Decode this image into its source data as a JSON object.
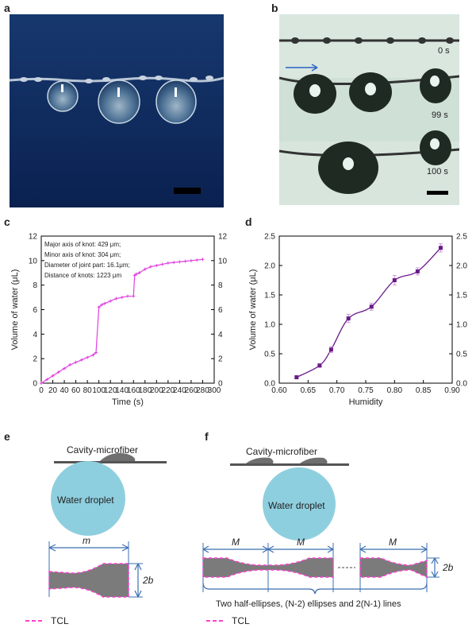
{
  "panels": {
    "a": "a",
    "b": "b",
    "c": "c",
    "d": "d",
    "e": "e",
    "f": "f"
  },
  "panel_b": {
    "times": [
      "0 s",
      "99 s",
      "100 s"
    ]
  },
  "chart_data": [
    {
      "type": "line",
      "panel": "c",
      "xlabel": "Time (s)",
      "ylabel": "Volume of water (μL)",
      "xlim": [
        0,
        300
      ],
      "ylim": [
        0,
        12
      ],
      "xticks": [
        "0",
        "20",
        "40",
        "60",
        "80",
        "100",
        "120",
        "140",
        "160",
        "180",
        "200",
        "220",
        "240",
        "260",
        "280",
        "300"
      ],
      "yticks": [
        "0",
        "2",
        "4",
        "6",
        "8",
        "10",
        "12"
      ],
      "yticks_right": [
        "0",
        "2",
        "4",
        "6",
        "8",
        "10",
        "12"
      ],
      "annotations": [
        "Major axis of knot: 429 μm;",
        "Minor axis of knot: 304 μm;",
        "Diameter of joint part: 16.1μm;",
        "Distance of knots: 1223 μm"
      ],
      "color": "#e040e0",
      "x": [
        0,
        10,
        20,
        30,
        40,
        50,
        60,
        70,
        80,
        90,
        95,
        100,
        105,
        110,
        120,
        130,
        140,
        150,
        160,
        162,
        165,
        170,
        180,
        190,
        200,
        210,
        220,
        230,
        240,
        250,
        260,
        270,
        280
      ],
      "y": [
        0,
        0.3,
        0.6,
        0.9,
        1.2,
        1.5,
        1.7,
        1.9,
        2.1,
        2.3,
        2.5,
        6.2,
        6.4,
        6.5,
        6.7,
        6.9,
        7.0,
        7.1,
        7.1,
        8.8,
        8.9,
        9.0,
        9.3,
        9.5,
        9.6,
        9.7,
        9.8,
        9.85,
        9.9,
        9.95,
        10.0,
        10.05,
        10.1
      ]
    },
    {
      "type": "scatter",
      "panel": "d",
      "xlabel": "Humidity",
      "ylabel": "Volume of water (μL)",
      "xlim": [
        0.6,
        0.9
      ],
      "ylim": [
        0,
        2.5
      ],
      "xticks": [
        "0.60",
        "0.65",
        "0.70",
        "0.75",
        "0.80",
        "0.85",
        "0.90"
      ],
      "yticks": [
        "0.0",
        "0.5",
        "1.0",
        "1.5",
        "2.0",
        "2.5"
      ],
      "yticks_right": [
        "0.0",
        "0.5",
        "1.0",
        "1.5",
        "2.0",
        "2.5"
      ],
      "color": "#6a1a8a",
      "x": [
        0.63,
        0.67,
        0.69,
        0.72,
        0.76,
        0.8,
        0.84,
        0.88
      ],
      "y": [
        0.1,
        0.3,
        0.57,
        1.1,
        1.3,
        1.75,
        1.9,
        2.3
      ],
      "err": [
        0.02,
        0.03,
        0.05,
        0.07,
        0.06,
        0.08,
        0.06,
        0.07
      ]
    }
  ],
  "panel_e": {
    "fiber_label": "Cavity-microfiber",
    "droplet_label": "Water droplet",
    "m_label": "m",
    "b_label": "2b",
    "tcl_label": "TCL"
  },
  "panel_f": {
    "fiber_label": "Cavity-microfiber",
    "droplet_label": "Water droplet",
    "M_label": "M",
    "b_label": "2b",
    "caption": "Two half-ellipses, (N-2) ellipses and 2(N-1) lines",
    "tcl_label": "TCL"
  },
  "colors": {
    "photo_a_bg": "#0d2a5c",
    "photo_b_bg": "#d6e6de",
    "droplet": "#8ecfdf",
    "knot": "#7b7b7b",
    "tcl": "#ff3fd0",
    "dimension": "#3b6fb0"
  }
}
